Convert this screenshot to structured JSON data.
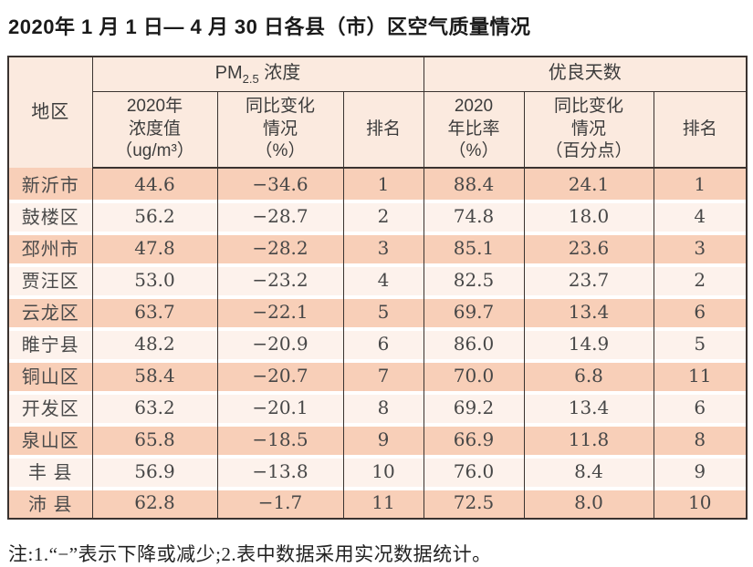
{
  "title": "2020年 1 月 1 日— 4 月 30 日各县（市）区空气质量情况",
  "note": "注:1.“−”表示下降或减少;2.表中数据采用实况数据统计。",
  "header": {
    "region": "地区",
    "pm_group": {
      "prefix": "PM",
      "sub": "2.5",
      "suffix": " 浓度"
    },
    "good_days_group": "优良天数",
    "pm_value": "2020年\n浓度值\n（ug/m³）",
    "pm_change": "同比变化\n情况\n（%）",
    "pm_rank": "排名",
    "good_rate": "2020\n年比率\n（%）",
    "good_change": "同比变化\n情况\n（百分点）",
    "good_rank": "排名"
  },
  "colors": {
    "row_dark": "#f8cfb8",
    "row_light": "#fdf2ec",
    "header_bg": "#fbeadf",
    "border": "#3a3330"
  },
  "chart_data": {
    "type": "table",
    "title": "2020年1月1日—4月30日各县（市）区空气质量情况",
    "columns": [
      "地区",
      "PM2.5浓度 2020年浓度值（ug/m³）",
      "PM2.5浓度 同比变化情况（%）",
      "PM2.5浓度 排名",
      "优良天数 2020年比率（%）",
      "优良天数 同比变化情况（百分点）",
      "优良天数 排名"
    ],
    "rows": [
      [
        "新沂市",
        "44.6",
        "−34.6",
        "1",
        "88.4",
        "24.1",
        "1"
      ],
      [
        "鼓楼区",
        "56.2",
        "−28.7",
        "2",
        "74.8",
        "18.0",
        "4"
      ],
      [
        "邳州市",
        "47.8",
        "−28.2",
        "3",
        "85.1",
        "23.6",
        "3"
      ],
      [
        "贾汪区",
        "53.0",
        "−23.2",
        "4",
        "82.5",
        "23.7",
        "2"
      ],
      [
        "云龙区",
        "63.7",
        "−22.1",
        "5",
        "69.7",
        "13.4",
        "6"
      ],
      [
        "睢宁县",
        "48.2",
        "−20.9",
        "6",
        "86.0",
        "14.9",
        "5"
      ],
      [
        "铜山区",
        "58.4",
        "−20.7",
        "7",
        "70.0",
        "6.8",
        "11"
      ],
      [
        "开发区",
        "63.2",
        "−20.1",
        "8",
        "69.2",
        "13.4",
        "6"
      ],
      [
        "泉山区",
        "65.8",
        "−18.5",
        "9",
        "66.9",
        "11.8",
        "8"
      ],
      [
        "丰 县",
        "56.9",
        "−13.8",
        "10",
        "76.0",
        "8.4",
        "9"
      ],
      [
        "沛 县",
        "62.8",
        "−1.7",
        "11",
        "72.5",
        "8.0",
        "10"
      ]
    ]
  }
}
